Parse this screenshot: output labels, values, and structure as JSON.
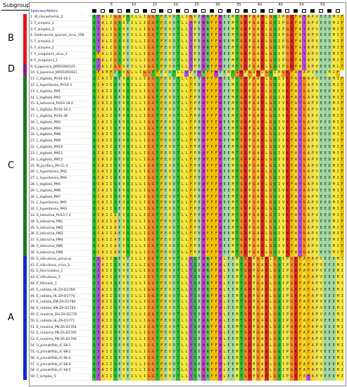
{
  "subgroup_label": "Subgroup",
  "column_header": "Species/Abbrv",
  "ruler": [
    "5",
    "10",
    "15",
    "20",
    "25",
    "30",
    "35",
    "40",
    "45",
    "50",
    "55"
  ],
  "subgroups": [
    {
      "label": "B",
      "color": "#e8121c",
      "from": 1,
      "to": 8
    },
    {
      "label": "D",
      "color": "#8b1a8b",
      "from": 9,
      "to": 10
    },
    {
      "label": "C",
      "color": "#1a7a1a",
      "from": 11,
      "to": 39
    },
    {
      "label": "A",
      "color": "#1428d8",
      "from": 40,
      "to": 59
    }
  ],
  "sequences": [
    {
      "name": "1. M_clavaeformis_2",
      "seq": "QYALIGGVQILLIGGTFEVDTLIGPEWNFFWEEMTGRPGARLGQIPGKFAYAPVEEDMIF"
    },
    {
      "name": "2. F_simplex_2",
      "seq": "QYALIGSVEILLIGGTFEVDTLLYPEWNFFWEEMTGRPGARLGQIPGKFAYAPVEEDMIF"
    },
    {
      "name": "3. F_simplex_3",
      "seq": "QYALIGSVEILLIGGTFEVDTLLYPEWNFFWEEMTGRPGARLGQIPGKFAYAPVEEDMIF"
    },
    {
      "name": "4. Feldmannia_species_virus_158",
      "seq": "QYALIGSVEILLIGGTFEVDTLLYPEWNFFWEEMTGRPGARLGQIPGKFAYAPVEEDMIF"
    },
    {
      "name": "5. F_simplex_1",
      "seq": "QYALIGSVEILLIGGTFEVDTLLYPEWNFFWEEMTGRPGARLGQIPGKFAYAPVEEDMIF"
    },
    {
      "name": "6. F_simplex_2",
      "seq": "QYALIGSVEILLIGGTFEVDTLLYPEWNFFWEEMTGRPGARLGQIPGKFAYAPVEEDMIF"
    },
    {
      "name": "7. F_irregularis_virus_1",
      "seq": "QFALIGSVEILLIGGTFEVDTLLYPEWNFFWEEMTGRPGARLGQIPGKFAYAPVEEDMIF"
    },
    {
      "name": "8. F_irregularis_1",
      "seq": "QYALIGSVEILLIGGTFEVDTLLYPEWNFFWEEMTGRPGARLGQIPGKFAYAPVEEDMIF"
    },
    {
      "name": "9. S_japonica_JXR01000145",
      "seq": "QYALIGGVEILLIGGTFEVDTLLYPEWNFFWEEMTGRPGARLGQIPGKFAYAPVEEDMLF"
    },
    {
      "name": "10. S_japonica_JXR01001921",
      "seq": "QFAMFESVGLLIGGTFEVDTLLYPEWNFFWEEMTGRPGARLGQIPGKFAYAPVEEDMIF"
    },
    {
      "name": "11. L_digitata_PH10-18.1",
      "seq": "QCAIISEVQILLIGGTFEVDTLLFPEWFFFWEEMTGRPGARLGQIVKFAYGAPVEEDMIF"
    },
    {
      "name": "12. L_hyperborea_PH10-3",
      "seq": "QCAIISEVQILLIGGTFEVDTLLFPEWFFFWEEMTGRPGARLGQIVKFAYGAPVEEDMIF"
    },
    {
      "name": "13. L_digitata_PM1",
      "seq": "QCAIISEVQILLIGGTFEVDTLLFPEWFFFWEEMTGRPGARLGQIVKFAYGAPVEEDMIF"
    },
    {
      "name": "14. L_digitata_PM2",
      "seq": "QCAIISEVQILLIGGTFEVDTLLFPEWFFFWEEMTGRPGARLGQIVKFAYGAPVEEDMIF"
    },
    {
      "name": "15. S_latissima_PH10-18.2",
      "seq": "QCAIISEVQILLIGGTFEVDTLLFPEWFFFWEEMTGRPGARLGQIVKFAYGAPVEEDMIF"
    },
    {
      "name": "16. L_digitata_PH10-18.2",
      "seq": "QCAIISEVQILLIGGTFEVDTLLFPEWFFFWEEMTGRPGARLGQIVKFAYGAPVEEDMIF"
    },
    {
      "name": "17. L_digitata_PH10-38",
      "seq": "QCAIISEVQILLIGGTFEVDTLLFPEWFFFWEEMTGRPGARLGQIVKFAYGAPVEEDMIF"
    },
    {
      "name": "18. L_digitata_PM3",
      "seq": "QCAIISEVQILLIGGTFEVDTLLFPEWFFFWEEMTGRPGARLGQIVKFAYGAPVEEDMIF"
    },
    {
      "name": "19. L_digitata_PM4",
      "seq": "QCAIISEVQILLIGGTFEVDTLLFPEWFFFWEEMTGRPGARLGQIVKFAYGAPVEEDMIF"
    },
    {
      "name": "20. L_digitata_PM8",
      "seq": "QCAIISEVQILLIGGTFEVDTLLFPEWFFFWEEMTGRPGARLGQIVKFAYGAPVEEDMIF"
    },
    {
      "name": "21. L_digitata_PM9",
      "seq": "QCAIISEVQILLIGGTFEVDTLLFPEWFFFWEEMTGRPGARLGQIVKFAYGAPVEEDMIF"
    },
    {
      "name": "22. L_digitata_PM10",
      "seq": "QCAIISEVQILLIGGTFEVDTLLFPEWFFFWEEMTGRPGARLGQIVKFAYGAPVEEDMIF"
    },
    {
      "name": "23. L_digitata_PM11",
      "seq": "QCAIISEVQILLIGGTFEVDTLLFPEWFFFWEEMTGRPGARLGQIVKFAYGAPVEEDMIF"
    },
    {
      "name": "24. L_digitata_PM12",
      "seq": "QCAIISEVQILLIGGTFEVDTLLFPEWFFFWEEMTGRPGARLGQIVKFAYGAPVEEDMIF"
    },
    {
      "name": "25. M_pyrifera_PH-CL-3",
      "seq": "QCAIISEVQILLIGGTFEVDTLLFPEWFFFWEEMTGRPGARLGQIVKFAYGAPVEEDMIF"
    },
    {
      "name": "26. L_hyperborea_PM2",
      "seq": "QCAIISEVQILLIGGTFEVDTLLFPEWFFFWEEMTGRPGARLGQIVKFAYGAPVEEDMIF"
    },
    {
      "name": "27. L_hyperborea_PM4",
      "seq": "QCAIISEVQILLIGGTFEVDTLLFPEWFFFWEEMTGRPGARLGQIVKFAYGAPVEEDMIF"
    },
    {
      "name": "28. L_digitata_PM5",
      "seq": "QCAIISEVQILLIGGTFEVDTLLFPEWFFFWEEMTGRPGARLGQIVKFAYGAPVEEDMIF"
    },
    {
      "name": "29. L_digitata_PM6",
      "seq": "QCAIISEVQILLIGGTFEVDTLLFPEWFFFWEEMTGRPGARLGQIVKFAYGAPVEEDMIF"
    },
    {
      "name": "30. L_digitata_PM7",
      "seq": "QCAIISEVQILLIGGTFEVDTLLFPEWFFFWEEMTGRPGARLGQIVKFAYGAPVEEDMIF"
    },
    {
      "name": "31. L_hyperborea_PM1",
      "seq": "QCAIISEVQILLIGGTFEVDTLLFPEWFFFWEEMTGRPGARLGQIVKFAYGAPVEEDMIF"
    },
    {
      "name": "32. L_hyperborea_PM3",
      "seq": "QCAIISEVQILLIGGTFEVDTLLFPEWFFFWEEMTGRPGARLGQIVKFAYGAPVEEDMIF"
    },
    {
      "name": "33. S_latissima_PH10-7.2",
      "seq": "QCAIIAEVQILLIGGTFEVDTLLFPEWFFFWEEMTGRPGARLGQIVKFAYGAPVEEDMIF"
    },
    {
      "name": "34. S_latissima_PM1",
      "seq": "QCAIIAEVQILLIGGTFEVDTLLFPEWFFFWEEMTGRPGARLGQIVKFAYGAPVEEDMIF"
    },
    {
      "name": "35. S_latissima_PM2",
      "seq": "QCAIIAEVQILLIGGTFEVDTLLFPEWFFFWEEMTGRPGARLGQIVKFAYGAPVEEDMIF"
    },
    {
      "name": "36. S_latissima_PM3",
      "seq": "QCAIIAEVQILLIGGTFEVDTLLFPEWFFFWEEMTGRPGARLGQIVKFAYGAPVEEDMIF"
    },
    {
      "name": "37. S_latissima_PM4",
      "seq": "QCAIIAEVQILLIGGTFEVDTLLFPEWFFFWEEMTGRPGARLGQIVKFAYGAPVEEDMIF"
    },
    {
      "name": "38. S_latissima_PM5",
      "seq": "QCAIIAEVQILLIGGTFEVDTLLFPEWFFFWEEMTGRPGARLGQIVKFAYGAPVEEDMIF"
    },
    {
      "name": "39. S_latissima_PM6",
      "seq": "QCAIIAEVQILLIGGTFEVDTLLFPEWFFFWEEMTGRPGARLGQIVKFAYGAPVEEDMIF"
    },
    {
      "name": "40. E_siliculosus_provirus",
      "seq": "QYAIISEVEILLIGGTFEVDTLLYSEWNFFWLEEMTGRPGARLGQIPGKFAFAPVEEDMIF"
    },
    {
      "name": "41. E_siliculosus_virus_1",
      "seq": "QYAIISEVEILLIGGTFEVDTLLYSEWNFFWLEEMTGRPGARLGQIPGKFAFAPVEEDMIF"
    },
    {
      "name": "42. E_fasciculatus_1",
      "seq": "QYAIISEVEILLIGGTFEVDTLLYSEWNFFWLEEMTGRPGARLGQIPGKFAFAPVEEDMIF"
    },
    {
      "name": "43. E_siliculosus_1",
      "seq": "QYAIISEVEILLIGGTFEVDTLLYSEWNFFWLEEMTGRPGARLGQIPGKFAFAPVEEDMIF"
    },
    {
      "name": "44. P_littoralis_1",
      "seq": "QYAIVSEVEILLIGGTFEVDTLLYSEWNFFWLEEMTGRPGARLGQIPGKFAFAPVEEDMIF"
    },
    {
      "name": "45. E_radiata_HL-ZA-D1769",
      "seq": "QYAIISEVEILLIGGTFEVDTLLYSEWNFFWLEEMTGRPGARLGQIPGKFAFAPVEEDMIF"
    },
    {
      "name": "46. E_radiata_HL-ZA-D1770",
      "seq": "QYAIISEVEILLIGGTFEVDTLLYSEWNFFWLEEMTGRPGARLGQIPGKFAFAPVEEDMIF"
    },
    {
      "name": "47. E_radiata_KM-ZA-D1780",
      "seq": "QYAIISEVEILLIGGTFEVDTLLYSEWNFFWLEEMTGRPGARLGQIPGKFAFAPVEEDMIF"
    },
    {
      "name": "48. E_radiata_KM-ZA-D1783",
      "seq": "QYAIISEVEILLIGGTFEVDTLLYSEWNFFWLEEMTGRPGARLGQIPGKFAFAPVEEDMIF"
    },
    {
      "name": "49. E_maxima_DH-ZA-D1735",
      "seq": "QYAIISEVEILLIGGTFEVDTLLYSEWNFFWLEEMTGRPGARLGQIPGKFAFAPVEEDMIF"
    },
    {
      "name": "50. E_radiata_HL-ZA-D1771",
      "seq": "QYAIISEVEILLIGGTFEVDTLLYSEWNFFWLEEMTGRPGARLGQIPGKFAFAPVEEDMIF"
    },
    {
      "name": "51. E_maxima_PN-ZA-D1764",
      "seq": "QYAIISEVEILLIGGTFEVDTLLYSEWNFFWLEEMTGRPGARLGQIPGKFAFAPVEEDMIF"
    },
    {
      "name": "52. E_maxima_PN-ZA-D1765",
      "seq": "QYAIISEVEILLIGGTFEVDTLLYSEWNFFWLEEMTGRPGARLGQIPGKFAFAPVEEDMIF"
    },
    {
      "name": "53. E_maxima_PN-ZA-D1766",
      "seq": "QYAIISEVEILLIGGTFEVDTLLYSEWNFFWLEEMTGRPGARLGQIPGKFAFAPVEEDMIF"
    },
    {
      "name": "54. U_pinnatifida_IC-SK-1",
      "seq": "QYAIISEVEILLIGGTFEVDTLLYSEWNFFWLEEMTGRPGARLGQIPGKFAFAPVEEDMIF"
    },
    {
      "name": "55. U_pinnatifida_IC-SK-2",
      "seq": "QYAIISEVEILLIGGTFEVDTLLYSEWNFFWLEEMTGRPGARLGQIPGKFAFAPVEEDMIF"
    },
    {
      "name": "56. U_pinnatifida_IC-SK-3",
      "seq": "QYAIISEVEILLIGGTFEVDTLLYSEWNFFWLEEMTGRPGARLGQIPGKFAFAPVEEDMIF"
    },
    {
      "name": "57. U_pinnatifida_IC-SK-4",
      "seq": "QYAIISEVEILLIGGTFEVDTLLYSEWNFFWLEEMTGRPGARLGQIPGKFAFAPVEEDMIF"
    },
    {
      "name": "58. U_pinnatifida_IC-SK-5",
      "seq": "QYAIISEVEILLIGGTFEVDTLLYSEWNFFWLEEMTGRPGARLGQIPGKFAFAPVEEDMIF"
    },
    {
      "name": "59. F_simplex_5",
      "seq": "QYAIISEVEILLIGGTFEVDTLLYSEWNFFWLEEMTGRPGARLGQIPGKFAYAPVEEDMIF"
    }
  ],
  "residue_colors": {
    "A": "#f5d33a",
    "C": "#f0d030",
    "D": "#a2d9a0",
    "E": "#a2d9a0",
    "F": "#f0c000",
    "G": "#f28c28",
    "H": "#56a0d8",
    "I": "#f5e642",
    "K": "#d82828",
    "L": "#f5e642",
    "M": "#f5e642",
    "N": "#60c060",
    "P": "#e8e050",
    "Q": "#2fbf3a",
    "R": "#d82828",
    "S": "#2fbf3a",
    "T": "#2fbf3a",
    "V": "#f5e642",
    "W": "#c43ad0",
    "Y": "#b04cd8",
    "-": "#ffffff"
  }
}
